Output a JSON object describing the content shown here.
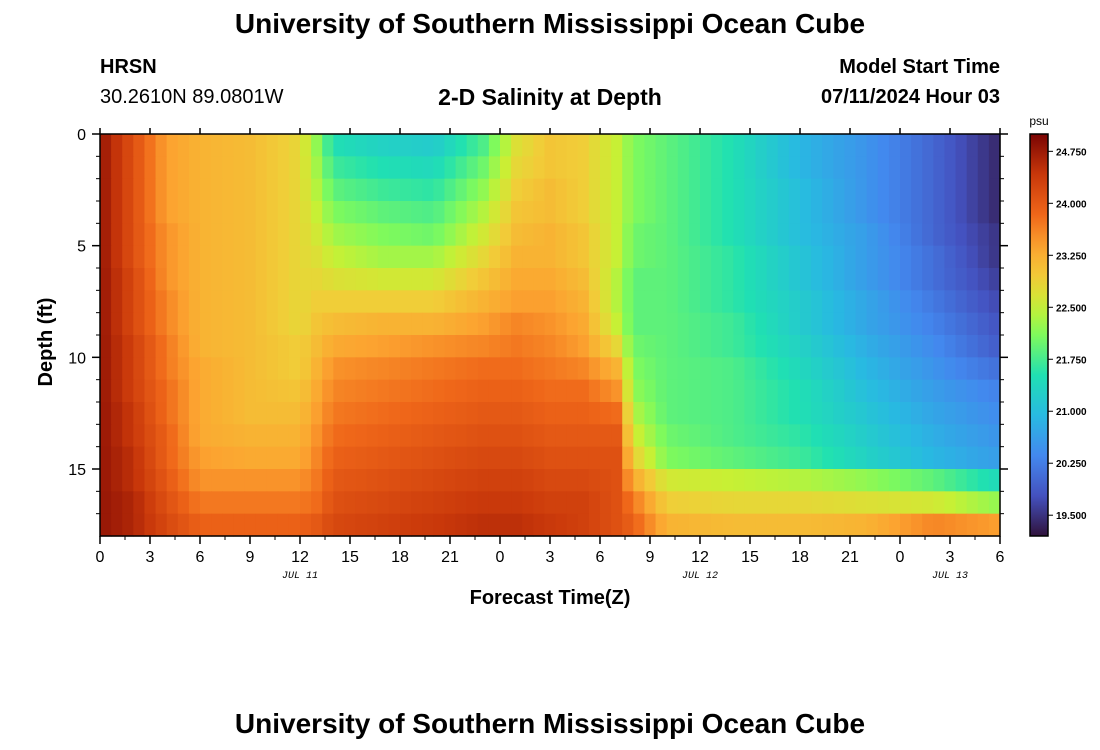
{
  "header": {
    "title": "University of Southern Mississippi Ocean Cube",
    "station": "HRSN",
    "coordinates": "30.2610N  89.0801W",
    "subtitle": "2-D Salinity at Depth",
    "model_start_label": "Model Start Time",
    "model_start_value": "07/11/2024 Hour 03"
  },
  "footer": {
    "title": "University of Southern Mississippi Ocean Cube"
  },
  "chart_data": {
    "type": "heatmap",
    "title": "2-D Salinity at Depth",
    "xlabel": "Forecast Time(Z)",
    "ylabel": "Depth (ft)",
    "colorbar_label": "psu",
    "x_unit": "hours since 2024-07-11 00Z",
    "xlim": [
      0,
      54
    ],
    "ylim": [
      18,
      0
    ],
    "x_ticks": [
      0,
      3,
      6,
      9,
      12,
      15,
      18,
      21,
      24,
      27,
      30,
      33,
      36,
      39,
      42,
      45,
      48,
      51,
      54
    ],
    "x_tick_labels": [
      "0",
      "3",
      "6",
      "9",
      "12",
      "15",
      "18",
      "21",
      "0",
      "3",
      "6",
      "9",
      "12",
      "15",
      "18",
      "21",
      "0",
      "3",
      "6"
    ],
    "date_labels": [
      {
        "x": 12,
        "label": "JUL 11"
      },
      {
        "x": 36,
        "label": "JUL 12"
      },
      {
        "x": 51,
        "label": "JUL 13"
      }
    ],
    "y_ticks": [
      0,
      5,
      10,
      15
    ],
    "y_tick_labels": [
      "0",
      "5",
      "10",
      "15"
    ],
    "colorbar": {
      "min": 19.2,
      "max": 25.0,
      "ticks": [
        19.5,
        20.25,
        21.0,
        21.75,
        22.5,
        23.25,
        24.0,
        24.75
      ],
      "tick_labels": [
        "19.500",
        "20.250",
        "21.000",
        "21.750",
        "22.500",
        "23.250",
        "24.000",
        "24.750"
      ]
    },
    "depth_levels_ft": [
      0,
      1,
      2,
      3,
      4,
      5,
      6,
      7,
      8,
      9,
      10,
      11,
      12,
      13,
      14,
      15,
      16,
      17,
      18
    ],
    "profiles": [
      {
        "hour": 0,
        "salinity": [
          24.8,
          24.8,
          24.8,
          24.8,
          24.8,
          24.8,
          24.8,
          24.8,
          24.8,
          24.8,
          24.8,
          24.8,
          24.8,
          24.8,
          24.8,
          24.8,
          24.8,
          24.8,
          24.8
        ]
      },
      {
        "hour": 2,
        "salinity": [
          24.1,
          24.1,
          24.1,
          24.1,
          24.1,
          24.1,
          24.2,
          24.2,
          24.2,
          24.3,
          24.3,
          24.3,
          24.4,
          24.4,
          24.5,
          24.5,
          24.6,
          24.6,
          24.7
        ]
      },
      {
        "hour": 4,
        "salinity": [
          23.4,
          23.4,
          23.4,
          23.4,
          23.5,
          23.5,
          23.5,
          23.6,
          23.6,
          23.7,
          23.7,
          23.8,
          23.8,
          23.9,
          23.9,
          24.0,
          24.1,
          24.2,
          24.3
        ]
      },
      {
        "hour": 6,
        "salinity": [
          23.2,
          23.2,
          23.2,
          23.2,
          23.2,
          23.2,
          23.2,
          23.2,
          23.2,
          23.2,
          23.3,
          23.3,
          23.3,
          23.3,
          23.4,
          23.5,
          23.7,
          23.9,
          24.1
        ]
      },
      {
        "hour": 9,
        "salinity": [
          23.1,
          23.1,
          23.1,
          23.1,
          23.1,
          23.1,
          23.1,
          23.1,
          23.1,
          23.1,
          23.1,
          23.1,
          23.1,
          23.2,
          23.3,
          23.5,
          23.7,
          23.9,
          24.1
        ]
      },
      {
        "hour": 12,
        "salinity": [
          22.8,
          22.8,
          22.8,
          22.8,
          22.8,
          22.8,
          22.8,
          22.8,
          22.8,
          22.9,
          22.9,
          23.0,
          23.1,
          23.2,
          23.3,
          23.5,
          23.7,
          23.9,
          24.1
        ]
      },
      {
        "hour": 13,
        "salinity": [
          22.2,
          22.3,
          22.4,
          22.5,
          22.6,
          22.7,
          22.8,
          22.9,
          23.0,
          23.1,
          23.2,
          23.3,
          23.4,
          23.5,
          23.6,
          23.7,
          23.8,
          24.0,
          24.2
        ]
      },
      {
        "hour": 14,
        "salinity": [
          21.5,
          21.7,
          21.9,
          22.1,
          22.3,
          22.5,
          22.7,
          22.9,
          23.1,
          23.3,
          23.5,
          23.6,
          23.7,
          23.8,
          23.9,
          24.0,
          24.1,
          24.2,
          24.3
        ]
      },
      {
        "hour": 17,
        "salinity": [
          21.3,
          21.5,
          21.7,
          21.9,
          22.1,
          22.3,
          22.6,
          22.9,
          23.2,
          23.4,
          23.6,
          23.7,
          23.8,
          23.9,
          24.0,
          24.1,
          24.2,
          24.3,
          24.4
        ]
      },
      {
        "hour": 20,
        "salinity": [
          21.2,
          21.4,
          21.6,
          21.8,
          22.0,
          22.3,
          22.6,
          22.9,
          23.2,
          23.5,
          23.7,
          23.8,
          23.9,
          24.0,
          24.1,
          24.2,
          24.3,
          24.4,
          24.5
        ]
      },
      {
        "hour": 23,
        "salinity": [
          21.8,
          22.0,
          22.2,
          22.4,
          22.6,
          22.8,
          23.0,
          23.2,
          23.4,
          23.6,
          23.8,
          23.9,
          24.0,
          24.1,
          24.2,
          24.3,
          24.4,
          24.5,
          24.6
        ]
      },
      {
        "hour": 25,
        "salinity": [
          22.7,
          22.8,
          22.9,
          23.0,
          23.1,
          23.2,
          23.3,
          23.4,
          23.6,
          23.7,
          23.8,
          23.9,
          24.0,
          24.1,
          24.2,
          24.3,
          24.4,
          24.5,
          24.6
        ]
      },
      {
        "hour": 27,
        "salinity": [
          23.0,
          23.0,
          23.1,
          23.1,
          23.2,
          23.2,
          23.3,
          23.4,
          23.5,
          23.6,
          23.7,
          23.8,
          23.9,
          24.0,
          24.1,
          24.2,
          24.3,
          24.4,
          24.5
        ]
      },
      {
        "hour": 29,
        "salinity": [
          22.9,
          22.9,
          22.9,
          22.9,
          23.0,
          23.0,
          23.1,
          23.2,
          23.3,
          23.4,
          23.6,
          23.8,
          23.9,
          24.0,
          24.1,
          24.2,
          24.3,
          24.3,
          24.4
        ]
      },
      {
        "hour": 31,
        "salinity": [
          22.5,
          22.5,
          22.5,
          22.5,
          22.5,
          22.5,
          22.4,
          22.4,
          22.5,
          22.8,
          23.2,
          23.5,
          23.8,
          24.0,
          24.1,
          24.1,
          24.1,
          24.1,
          24.3
        ]
      },
      {
        "hour": 32,
        "salinity": [
          22.1,
          22.1,
          22.1,
          22.1,
          22.0,
          22.0,
          21.9,
          21.9,
          21.9,
          22.0,
          22.1,
          22.2,
          22.4,
          22.6,
          22.9,
          23.3,
          23.7,
          23.9,
          24.2
        ]
      },
      {
        "hour": 34,
        "salinity": [
          21.9,
          21.9,
          21.9,
          21.9,
          21.9,
          21.9,
          21.9,
          21.9,
          21.9,
          21.9,
          21.9,
          21.9,
          21.9,
          22.0,
          22.1,
          22.6,
          22.9,
          23.2,
          23.8
        ]
      },
      {
        "hour": 38,
        "salinity": [
          21.5,
          21.5,
          21.5,
          21.5,
          21.5,
          21.6,
          21.6,
          21.6,
          21.7,
          21.7,
          21.8,
          21.8,
          21.8,
          21.8,
          21.9,
          22.5,
          22.8,
          23.1,
          23.9
        ]
      },
      {
        "hour": 42,
        "salinity": [
          20.9,
          20.9,
          21.0,
          21.0,
          21.0,
          21.1,
          21.1,
          21.2,
          21.2,
          21.3,
          21.4,
          21.5,
          21.5,
          21.6,
          21.7,
          22.4,
          22.8,
          23.1,
          24.0
        ]
      },
      {
        "hour": 46,
        "salinity": [
          20.5,
          20.5,
          20.5,
          20.5,
          20.6,
          20.6,
          20.6,
          20.7,
          20.7,
          20.8,
          20.9,
          21.0,
          21.1,
          21.2,
          21.3,
          22.2,
          22.7,
          23.2,
          24.1
        ]
      },
      {
        "hour": 50,
        "salinity": [
          20.0,
          20.0,
          20.0,
          20.0,
          20.0,
          20.1,
          20.1,
          20.2,
          20.3,
          20.4,
          20.5,
          20.6,
          20.7,
          20.8,
          20.9,
          21.9,
          22.6,
          23.6,
          24.4
        ]
      },
      {
        "hour": 54,
        "salinity": [
          19.4,
          19.4,
          19.4,
          19.4,
          19.5,
          19.5,
          19.6,
          19.7,
          19.8,
          19.9,
          20.1,
          20.3,
          20.4,
          20.5,
          20.6,
          21.4,
          22.2,
          23.4,
          24.2
        ]
      }
    ]
  }
}
